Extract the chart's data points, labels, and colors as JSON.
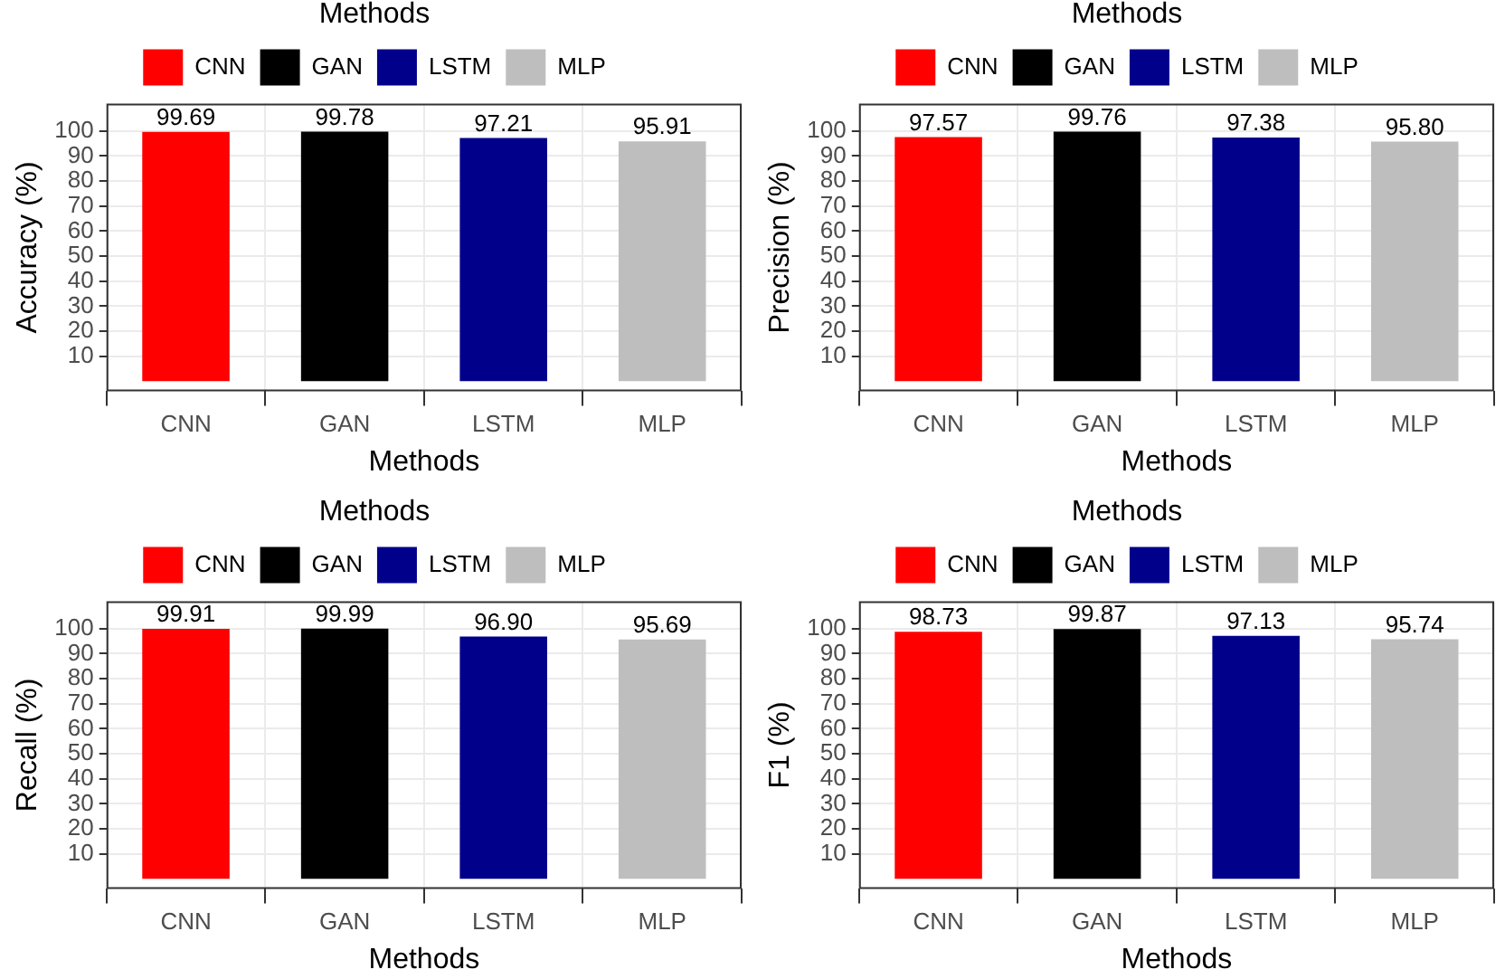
{
  "chart_data": [
    {
      "type": "bar",
      "categories": [
        "CNN",
        "GAN",
        "LSTM",
        "MLP"
      ],
      "series": [
        {
          "name": "CNN",
          "color": "#ff0000",
          "values": [
            99.69,
            null,
            null,
            null
          ],
          "value_labels": [
            "99.69",
            null,
            null,
            null
          ]
        },
        {
          "name": "GAN",
          "color": "#000000",
          "values": [
            null,
            99.78,
            null,
            null
          ],
          "value_labels": [
            null,
            "99.78",
            null,
            null
          ]
        },
        {
          "name": "LSTM",
          "color": "#00008b",
          "values": [
            null,
            null,
            97.21,
            null
          ],
          "value_labels": [
            null,
            null,
            "97.21",
            null
          ]
        },
        {
          "name": "MLP",
          "color": "#bebebe",
          "values": [
            null,
            null,
            null,
            95.91
          ],
          "value_labels": [
            null,
            null,
            null,
            "95.91"
          ]
        }
      ],
      "xlabel": "Methods",
      "ylabel": "Accuracy (%)",
      "legend_title": "Methods",
      "legend": "top",
      "ylim": [
        -4,
        111
      ],
      "yticks": [
        10,
        20,
        30,
        40,
        50,
        60,
        70,
        80,
        90,
        100
      ],
      "grid": true
    },
    {
      "type": "bar",
      "categories": [
        "CNN",
        "GAN",
        "LSTM",
        "MLP"
      ],
      "series": [
        {
          "name": "CNN",
          "color": "#ff0000",
          "values": [
            97.57,
            null,
            null,
            null
          ],
          "value_labels": [
            "97.57",
            null,
            null,
            null
          ]
        },
        {
          "name": "GAN",
          "color": "#000000",
          "values": [
            null,
            99.76,
            null,
            null
          ],
          "value_labels": [
            null,
            "99.76",
            null,
            null
          ]
        },
        {
          "name": "LSTM",
          "color": "#00008b",
          "values": [
            null,
            null,
            97.38,
            null
          ],
          "value_labels": [
            null,
            null,
            "97.38",
            null
          ]
        },
        {
          "name": "MLP",
          "color": "#bebebe",
          "values": [
            null,
            null,
            null,
            95.8
          ],
          "value_labels": [
            null,
            null,
            null,
            "95.80"
          ]
        }
      ],
      "xlabel": "Methods",
      "ylabel": "Precision (%)",
      "legend_title": "Methods",
      "legend": "top",
      "ylim": [
        -4,
        111
      ],
      "yticks": [
        10,
        20,
        30,
        40,
        50,
        60,
        70,
        80,
        90,
        100
      ],
      "grid": true
    },
    {
      "type": "bar",
      "categories": [
        "CNN",
        "GAN",
        "LSTM",
        "MLP"
      ],
      "series": [
        {
          "name": "CNN",
          "color": "#ff0000",
          "values": [
            99.91,
            null,
            null,
            null
          ],
          "value_labels": [
            "99.91",
            null,
            null,
            null
          ]
        },
        {
          "name": "GAN",
          "color": "#000000",
          "values": [
            null,
            99.99,
            null,
            null
          ],
          "value_labels": [
            null,
            "99.99",
            null,
            null
          ]
        },
        {
          "name": "LSTM",
          "color": "#00008b",
          "values": [
            null,
            null,
            96.9,
            null
          ],
          "value_labels": [
            null,
            null,
            "96.90",
            null
          ]
        },
        {
          "name": "MLP",
          "color": "#bebebe",
          "values": [
            null,
            null,
            null,
            95.69
          ],
          "value_labels": [
            null,
            null,
            null,
            "95.69"
          ]
        }
      ],
      "xlabel": "Methods",
      "ylabel": "Recall (%)",
      "legend_title": "Methods",
      "legend": "top",
      "ylim": [
        -4,
        111
      ],
      "yticks": [
        10,
        20,
        30,
        40,
        50,
        60,
        70,
        80,
        90,
        100
      ],
      "grid": true
    },
    {
      "type": "bar",
      "categories": [
        "CNN",
        "GAN",
        "LSTM",
        "MLP"
      ],
      "series": [
        {
          "name": "CNN",
          "color": "#ff0000",
          "values": [
            98.73,
            null,
            null,
            null
          ],
          "value_labels": [
            "98.73",
            null,
            null,
            null
          ]
        },
        {
          "name": "GAN",
          "color": "#000000",
          "values": [
            null,
            99.87,
            null,
            null
          ],
          "value_labels": [
            null,
            "99.87",
            null,
            null
          ]
        },
        {
          "name": "LSTM",
          "color": "#00008b",
          "values": [
            null,
            null,
            97.13,
            null
          ],
          "value_labels": [
            null,
            null,
            "97.13",
            null
          ]
        },
        {
          "name": "MLP",
          "color": "#bebebe",
          "values": [
            null,
            null,
            null,
            95.74
          ],
          "value_labels": [
            null,
            null,
            null,
            "95.74"
          ]
        }
      ],
      "xlabel": "Methods",
      "ylabel": "F1 (%)",
      "legend_title": "Methods",
      "legend": "top",
      "ylim": [
        -4,
        111
      ],
      "yticks": [
        10,
        20,
        30,
        40,
        50,
        60,
        70,
        80,
        90,
        100
      ],
      "grid": true
    }
  ]
}
